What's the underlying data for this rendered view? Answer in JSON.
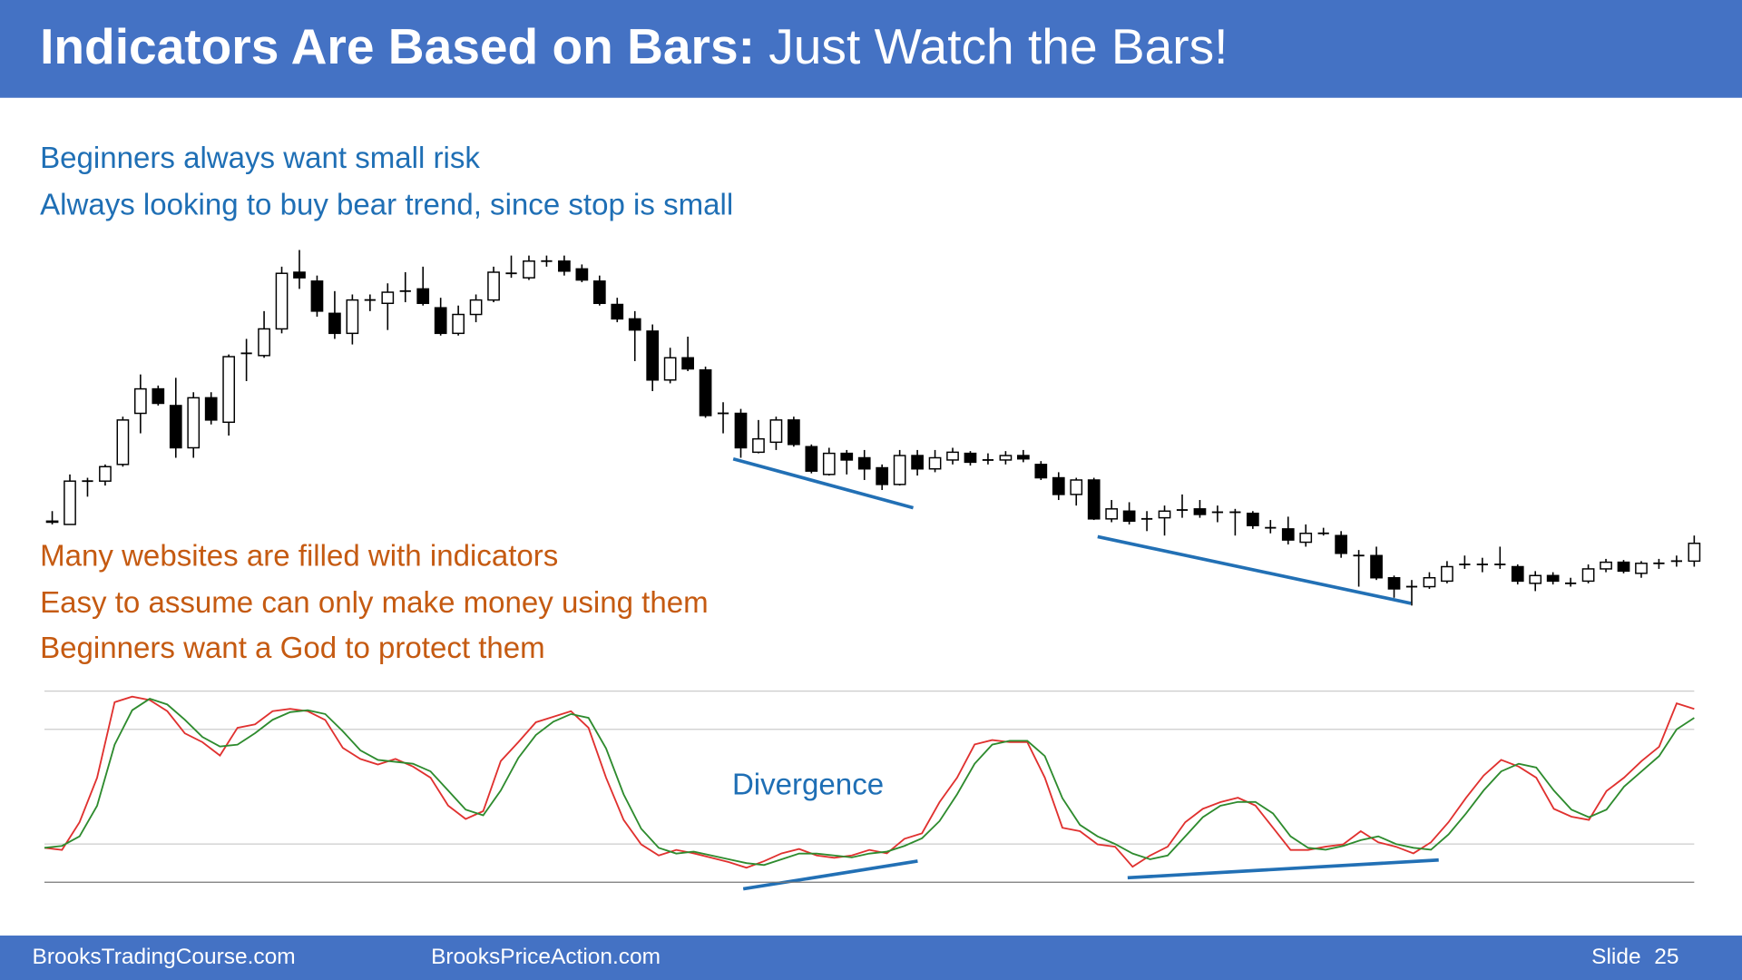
{
  "header": {
    "title_bold": "Indicators Are Based on Bars:",
    "title_rest": "Just Watch the Bars!"
  },
  "notes_top": [
    "Beginners always want small risk",
    "Always looking to buy bear trend, since stop is small"
  ],
  "notes_bottom": [
    "Many websites are filled with indicators",
    "Easy to assume can only make money using them",
    "Beginners want a God to protect them"
  ],
  "chart_data": [
    {
      "type": "candlestick",
      "up_color": "#ffffff",
      "down_color": "#000000",
      "open": [
        130,
        128,
        167,
        167,
        182,
        228,
        250,
        235,
        197,
        242,
        220,
        282,
        280,
        304,
        355,
        347,
        318,
        300,
        330,
        327,
        338,
        340,
        323,
        300,
        317,
        330,
        354,
        350,
        365,
        365,
        358,
        347,
        326,
        313,
        302,
        258,
        278,
        267,
        228,
        228,
        193,
        202,
        222,
        198,
        173,
        192,
        188,
        179,
        164,
        190,
        178,
        186,
        192,
        186,
        186,
        190,
        182,
        170,
        155,
        168,
        133,
        140,
        133,
        134,
        141,
        142,
        139,
        139,
        138,
        125,
        124,
        112,
        120,
        118,
        100,
        100,
        80,
        72,
        72,
        77,
        92,
        92,
        92,
        90,
        75,
        82,
        75,
        77,
        88,
        94,
        84,
        93,
        95,
        95
      ],
      "high": [
        140,
        173,
        170,
        182,
        225,
        263,
        253,
        260,
        247,
        247,
        281,
        295,
        320,
        360,
        375,
        352,
        338,
        335,
        335,
        345,
        355,
        360,
        332,
        325,
        335,
        360,
        370,
        370,
        370,
        370,
        362,
        352,
        332,
        320,
        308,
        287,
        297,
        270,
        238,
        232,
        222,
        225,
        225,
        200,
        197,
        195,
        195,
        182,
        195,
        195,
        195,
        197,
        194,
        192,
        194,
        195,
        185,
        175,
        170,
        170,
        150,
        148,
        140,
        145,
        155,
        150,
        145,
        142,
        140,
        132,
        135,
        128,
        125,
        122,
        105,
        108,
        82,
        78,
        85,
        95,
        100,
        98,
        108,
        92,
        86,
        85,
        80,
        92,
        97,
        96,
        95,
        97,
        100,
        118
      ],
      "low": [
        128,
        128,
        153,
        163,
        180,
        210,
        235,
        188,
        188,
        218,
        208,
        257,
        278,
        300,
        340,
        315,
        295,
        290,
        320,
        303,
        328,
        325,
        298,
        298,
        310,
        328,
        350,
        348,
        360,
        352,
        346,
        325,
        310,
        275,
        248,
        255,
        266,
        224,
        210,
        188,
        192,
        195,
        198,
        174,
        172,
        173,
        168,
        159,
        163,
        172,
        175,
        182,
        181,
        182,
        182,
        184,
        168,
        150,
        145,
        132,
        130,
        128,
        122,
        118,
        134,
        134,
        130,
        118,
        124,
        120,
        110,
        108,
        118,
        98,
        72,
        78,
        62,
        55,
        70,
        75,
        88,
        85,
        88,
        74,
        68,
        74,
        72,
        75,
        85,
        84,
        80,
        88,
        90,
        90
      ],
      "close": [
        131,
        167,
        167,
        180,
        222,
        250,
        237,
        197,
        242,
        222,
        279,
        282,
        304,
        354,
        350,
        320,
        300,
        330,
        330,
        337,
        338,
        327,
        300,
        317,
        330,
        355,
        354,
        365,
        365,
        356,
        348,
        327,
        313,
        303,
        258,
        278,
        268,
        226,
        228,
        197,
        205,
        222,
        200,
        176,
        192,
        186,
        178,
        164,
        190,
        178,
        188,
        193,
        184,
        186,
        190,
        187,
        170,
        155,
        168,
        133,
        142,
        131,
        133,
        140,
        141,
        137,
        139,
        139,
        127,
        125,
        114,
        120,
        120,
        102,
        100,
        80,
        70,
        72,
        80,
        90,
        92,
        92,
        92,
        77,
        82,
        77,
        75,
        88,
        94,
        86,
        93,
        93,
        95,
        111
      ]
    },
    {
      "type": "line",
      "ylim": [
        0,
        100
      ],
      "yticks": [
        0,
        20,
        80,
        100
      ],
      "grid": true,
      "annotations": [
        "Divergence"
      ],
      "series": [
        {
          "color": "#e0312f",
          "values": [
            18.0,
            16.9,
            31.4,
            54.7,
            94.2,
            97.1,
            95.3,
            89.5,
            77.9,
            73.3,
            66.3,
            80.8,
            82.6,
            89.5,
            90.7,
            89.5,
            84.9,
            70.3,
            64.5,
            61.6,
            64.5,
            60.5,
            54.7,
            40.1,
            33.1,
            37.2,
            63.4,
            73.3,
            83.7,
            86.6,
            89.5,
            80.8,
            54.7,
            32.6,
            19.8,
            14.0,
            16.9,
            15.1,
            12.8,
            10.5,
            7.6,
            11.0,
            15.1,
            17.4,
            14.0,
            12.8,
            14.0,
            16.9,
            15.1,
            22.7,
            25.6,
            41.9,
            54.7,
            72.1,
            74.4,
            73.3,
            73.3,
            54.7,
            28.5,
            26.7,
            19.8,
            18.6,
            8.1,
            14.0,
            18.6,
            31.4,
            38.4,
            41.9,
            44.2,
            40.1,
            28.5,
            16.9,
            16.9,
            18.6,
            19.8,
            26.7,
            20.9,
            18.6,
            15.1,
            20.9,
            31.4,
            44.2,
            55.8,
            64.0,
            60.5,
            54.7,
            38.4,
            34.3,
            32.6,
            47.7,
            54.7,
            63.4,
            70.9,
            93.6,
            90.7
          ]
        },
        {
          "color": "#2e8b2e",
          "values": [
            18,
            19,
            24,
            40,
            72,
            90,
            96,
            93,
            85,
            76,
            71,
            72,
            78,
            85,
            89,
            90,
            88,
            79,
            69,
            64,
            63,
            62,
            58,
            48,
            38,
            35,
            48,
            65,
            77,
            84,
            88,
            86,
            70,
            46,
            28,
            18,
            15,
            16,
            14,
            12,
            10,
            9,
            12,
            15,
            15,
            14,
            13,
            15,
            16,
            19,
            23,
            32,
            46,
            62,
            72,
            74,
            74,
            66,
            44,
            30,
            24,
            20,
            15,
            12,
            14,
            24,
            34,
            40,
            42,
            42,
            36,
            24,
            18,
            17,
            19,
            22,
            24,
            20,
            18,
            17,
            25,
            36,
            48,
            58,
            62,
            60,
            48,
            38,
            34,
            38,
            50,
            58,
            66,
            80,
            86
          ]
        }
      ]
    }
  ],
  "footer": {
    "left": "BrooksTradingCourse.com",
    "center": "BrooksPriceAction.com",
    "slide_label": "Slide",
    "slide_number": 25
  }
}
